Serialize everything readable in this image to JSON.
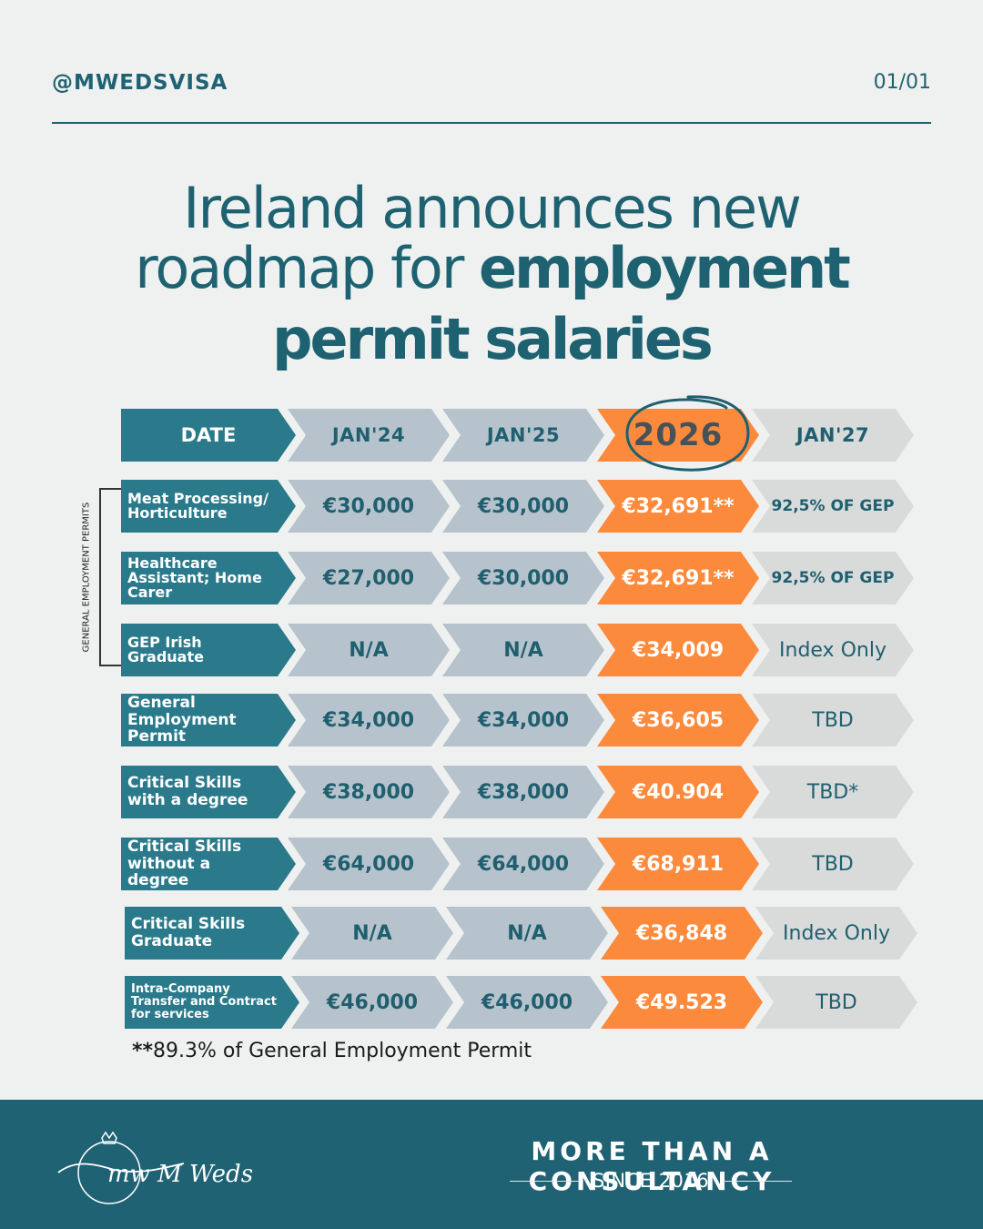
{
  "header": {
    "handle": "@MWEDSVISA",
    "page": "01/01"
  },
  "title": {
    "line1": "Ireland announces new",
    "line2_plain": "roadmap for ",
    "line2_bold": "employment",
    "line3": "permit salaries"
  },
  "table": {
    "headers": [
      "DATE",
      "JAN'24",
      "JAN'25",
      "2026",
      "JAN'27"
    ],
    "group_label": "GENERAL EMPLOYMENT PERMITS",
    "rows": [
      {
        "label": "Meat Processing/ Horticulture",
        "jan24": "€30,000",
        "jan25": "€30,000",
        "y2026": "€32,691**",
        "jan27": "92,5% OF GEP"
      },
      {
        "label": "Healthcare Assistant; Home Carer",
        "jan24": "€27,000",
        "jan25": "€30,000",
        "y2026": "€32,691**",
        "jan27": "92,5% OF GEP"
      },
      {
        "label": "GEP Irish Graduate",
        "jan24": "N/A",
        "jan25": "N/A",
        "y2026": "€34,009",
        "jan27": "Index Only"
      },
      {
        "label": "General Employment Permit",
        "jan24": "€34,000",
        "jan25": "€34,000",
        "y2026": "€36,605",
        "jan27": "TBD"
      },
      {
        "label": "Critical Skills with a degree",
        "jan24": "€38,000",
        "jan25": "€38,000",
        "y2026": "€40.904",
        "jan27": "TBD*"
      },
      {
        "label": "Critical Skills without a degree",
        "jan24": "€64,000",
        "jan25": "€64,000",
        "y2026": "€68,911",
        "jan27": "TBD"
      },
      {
        "label": "Critical Skills Graduate",
        "jan24": "N/A",
        "jan25": "N/A",
        "y2026": "€36,848",
        "jan27": "Index Only"
      },
      {
        "label": "Intra-Company Transfer and Contract for services",
        "jan24": "€46,000",
        "jan25": "€46,000",
        "y2026": "€49.523",
        "jan27": "TBD"
      }
    ]
  },
  "footnote": {
    "mark": "**",
    "text": "89.3% of General Employment Permit"
  },
  "footer": {
    "tagline": "MORE THAN A CONSULTANCY",
    "since": "SINCE 2016",
    "logo_text": "mw M Weds"
  },
  "colors": {
    "teal": "#2a7a8c",
    "grey": "#b7c3cc",
    "orange": "#fc8a3d",
    "light": "#d9dbdb",
    "footer": "#1f6274"
  }
}
